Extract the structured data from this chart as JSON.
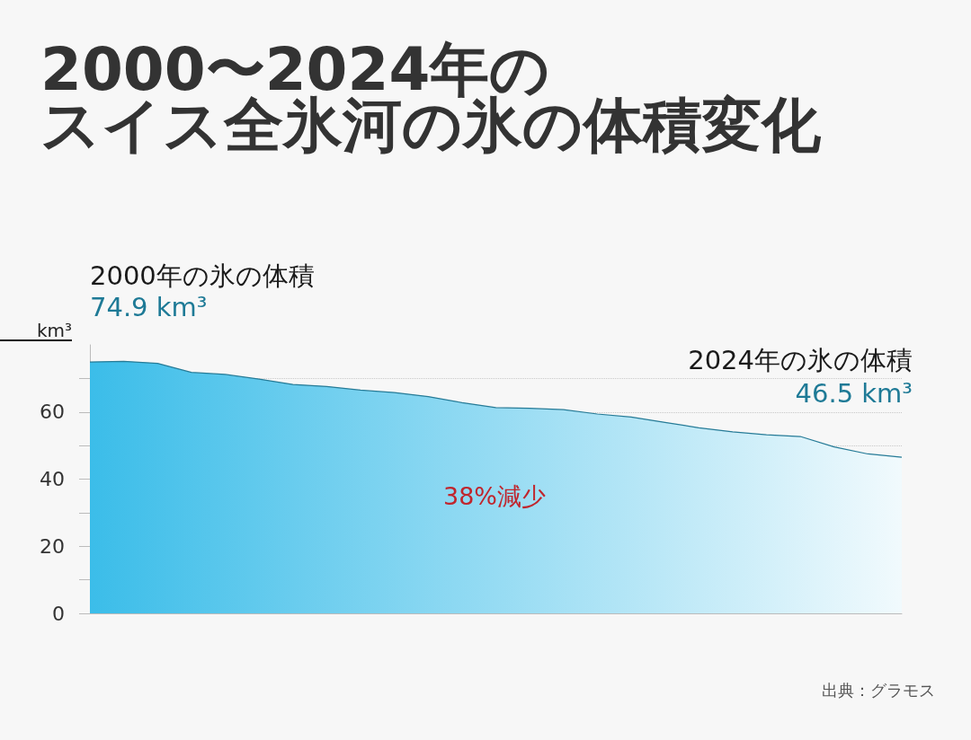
{
  "chart_data": {
    "type": "area",
    "title": "2000〜2024年のスイス全氷河の氷の体積変化",
    "ylabel": "km³",
    "categories": [
      null,
      null,
      null,
      null,
      null,
      null,
      null,
      null,
      null,
      null,
      null,
      null,
      null,
      null,
      null,
      null,
      null,
      null,
      null,
      null,
      null,
      null,
      null,
      null,
      null
    ],
    "values": [
      74.9,
      75.1,
      74.5,
      71.8,
      71.2,
      69.8,
      68.2,
      67.6,
      66.5,
      65.8,
      64.6,
      62.8,
      61.3,
      61.1,
      60.7,
      59.4,
      58.5,
      56.9,
      55.3,
      54.1,
      53.2,
      52.7,
      49.6,
      47.5,
      46.5
    ],
    "color": "#3bbde9",
    "ylim": [
      0,
      80
    ],
    "yticks": [
      0,
      {
        "value": 10,
        "label": null
      },
      20,
      {
        "value": 30,
        "label": null
      },
      40,
      {
        "value": 50,
        "label": null
      },
      60,
      {
        "value": 70,
        "label": null
      }
    ],
    "grid": "y",
    "tick_labels": "y",
    "annotations": [
      "2000年の氷の体積",
      "74.9 km³",
      "2024年の氷の体積",
      "46.5 km³",
      "38%減少",
      "出典：グラモス"
    ]
  }
}
